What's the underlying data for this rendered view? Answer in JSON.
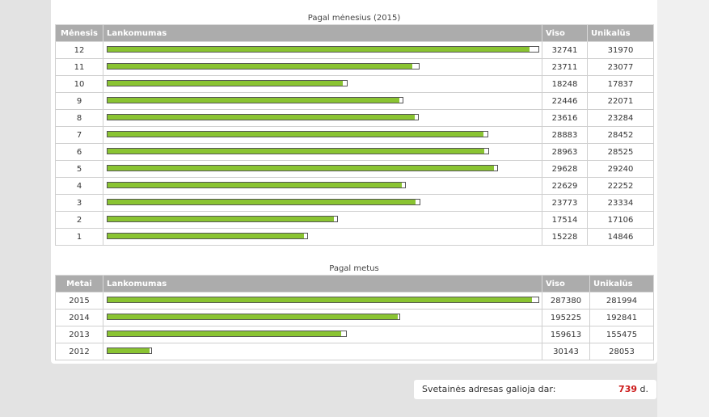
{
  "monthly": {
    "caption": "Pagal mėnesius (2015)",
    "headers": {
      "key": "Mėnesis",
      "bar": "Lankomumas",
      "total": "Viso",
      "unique": "Unikalūs"
    },
    "max_total": 32741,
    "rows": [
      {
        "key": "12",
        "total": "32741",
        "unique": "31970",
        "visits": 32741,
        "uniq": 31970
      },
      {
        "key": "11",
        "total": "23711",
        "unique": "23077",
        "visits": 23711,
        "uniq": 23077
      },
      {
        "key": "10",
        "total": "18248",
        "unique": "17837",
        "visits": 18248,
        "uniq": 17837
      },
      {
        "key": "9",
        "total": "22446",
        "unique": "22071",
        "visits": 22446,
        "uniq": 22071
      },
      {
        "key": "8",
        "total": "23616",
        "unique": "23284",
        "visits": 23616,
        "uniq": 23284
      },
      {
        "key": "7",
        "total": "28883",
        "unique": "28452",
        "visits": 28883,
        "uniq": 28452
      },
      {
        "key": "6",
        "total": "28963",
        "unique": "28525",
        "visits": 28963,
        "uniq": 28525
      },
      {
        "key": "5",
        "total": "29628",
        "unique": "29240",
        "visits": 29628,
        "uniq": 29240
      },
      {
        "key": "4",
        "total": "22629",
        "unique": "22252",
        "visits": 22629,
        "uniq": 22252
      },
      {
        "key": "3",
        "total": "23773",
        "unique": "23334",
        "visits": 23773,
        "uniq": 23334
      },
      {
        "key": "2",
        "total": "17514",
        "unique": "17106",
        "visits": 17514,
        "uniq": 17106
      },
      {
        "key": "1",
        "total": "15228",
        "unique": "14846",
        "visits": 15228,
        "uniq": 14846
      }
    ]
  },
  "yearly": {
    "caption": "Pagal metus",
    "headers": {
      "key": "Metai",
      "bar": "Lankomumas",
      "total": "Viso",
      "unique": "Unikalūs"
    },
    "max_total": 287380,
    "rows": [
      {
        "key": "2015",
        "total": "287380",
        "unique": "281994",
        "visits": 287380,
        "uniq": 281994
      },
      {
        "key": "2014",
        "total": "195225",
        "unique": "192841",
        "visits": 195225,
        "uniq": 192841
      },
      {
        "key": "2013",
        "total": "159613",
        "unique": "155475",
        "visits": 159613,
        "uniq": 155475
      },
      {
        "key": "2012",
        "total": "30143",
        "unique": "28053",
        "visits": 30143,
        "uniq": 28053
      }
    ]
  },
  "expiry": {
    "label": "Svetainės adresas galioja dar:",
    "days": "739",
    "unit": "d."
  },
  "colors": {
    "bar_fill": "#8ac432",
    "header_bg": "#acacac",
    "days_red": "#cc1a1a"
  }
}
